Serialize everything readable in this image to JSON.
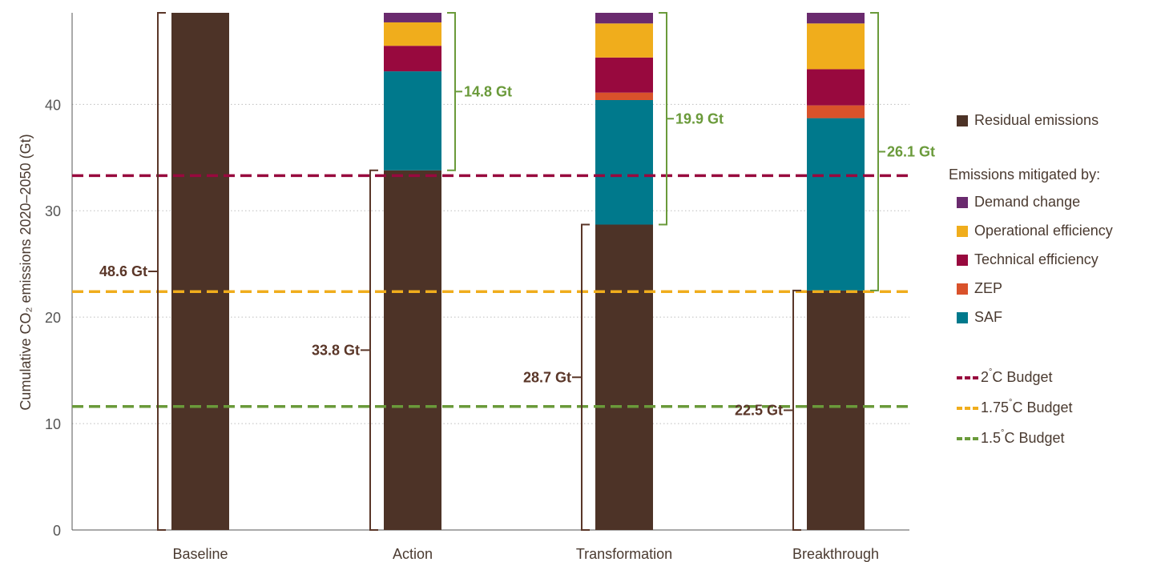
{
  "chart_data": {
    "type": "bar",
    "stacked": true,
    "ylabel": "Cumulative CO₂ emissions 2020–2050 (Gt)",
    "ylim": [
      0,
      48.6
    ],
    "yticks": [
      0,
      10,
      20,
      30,
      40
    ],
    "grid": "horizontal dotted",
    "categories": [
      "Baseline",
      "Action",
      "Transformation",
      "Breakthrough"
    ],
    "series": [
      {
        "name": "Residual emissions",
        "color": "#4d3327",
        "values": [
          48.6,
          33.8,
          28.7,
          22.5
        ]
      },
      {
        "name": "SAF",
        "color": "#00798c",
        "values": [
          0,
          9.3,
          11.7,
          16.2
        ]
      },
      {
        "name": "ZEP",
        "color": "#d9522b",
        "values": [
          0,
          0,
          0.7,
          1.2
        ]
      },
      {
        "name": "Technical efficiency",
        "color": "#98093e",
        "values": [
          0,
          2.4,
          3.3,
          3.4
        ]
      },
      {
        "name": "Operational efficiency",
        "color": "#f0ad1c",
        "values": [
          0,
          2.2,
          3.2,
          4.3
        ]
      },
      {
        "name": "Demand change",
        "color": "#6a2a6e",
        "values": [
          0,
          0.9,
          1.0,
          1.0
        ]
      }
    ],
    "residual_labels": [
      "48.6 Gt",
      "33.8 Gt",
      "28.7 Gt",
      "22.5 Gt"
    ],
    "mitigated_labels": [
      "",
      "14.8 Gt",
      "19.9 Gt",
      "26.1 Gt"
    ],
    "budget_lines": [
      {
        "name": "2°C Budget",
        "label_main": "2",
        "label_suffix": "C Budget",
        "value": 33.3,
        "color": "#98093e"
      },
      {
        "name": "1.75°C Budget",
        "label_main": "1.75",
        "label_suffix": "C Budget",
        "value": 22.4,
        "color": "#f0ad1c"
      },
      {
        "name": "1.5°C Budget",
        "label_main": "1.5",
        "label_suffix": "C Budget",
        "value": 11.6,
        "color": "#6a9a3a"
      }
    ],
    "legend": {
      "placement": "right",
      "residual_entry": "Residual emissions",
      "heading": "Emissions mitigated by:",
      "mitigation_entries": [
        "Demand change",
        "Operational efficiency",
        "Technical efficiency",
        "ZEP",
        "SAF"
      ]
    }
  }
}
